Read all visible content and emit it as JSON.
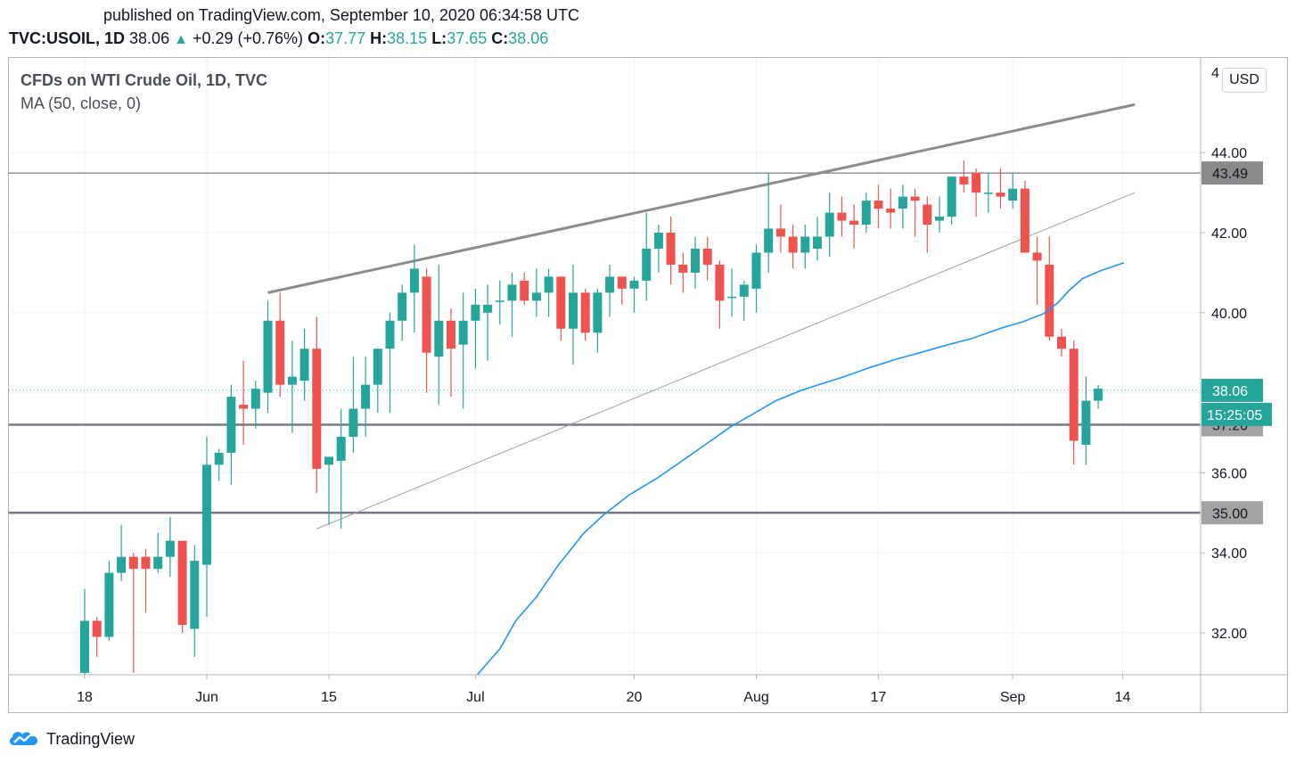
{
  "header": {
    "published": "published on TradingView.com, September 10, 2020 06:34:58 UTC",
    "symbol": "TVC:USOIL, 1D",
    "last": "38.06",
    "change": "+0.29 (+0.76%)",
    "open_label": "O:",
    "open": "37.77",
    "high_label": "H:",
    "high": "38.15",
    "low_label": "L:",
    "low": "37.65",
    "close_label": "C:",
    "close": "38.06"
  },
  "legend": {
    "title": "CFDs on WTI Crude Oil, 1D, TVC",
    "indicator": "MA (50, close, 0)"
  },
  "currency": "USD",
  "footer": {
    "brand": "TradingView",
    "icon": "tradingview-cloud-icon"
  },
  "colors": {
    "up": "#26a69a",
    "down": "#ef5350",
    "ma": "#2196f3",
    "level": "#787b86",
    "text": "#131722"
  },
  "chart_data": {
    "type": "candlestick",
    "title": "CFDs on WTI Crude Oil, 1D, TVC",
    "ylim": [
      30.9,
      46.2
    ],
    "y_ticks": [
      "32.00",
      "34.00",
      "36.00",
      "38.00",
      "40.00",
      "42.00",
      "44.00"
    ],
    "y_top_partial": "4",
    "x_labels": [
      {
        "label": "18",
        "at": 0
      },
      {
        "label": "Jun",
        "at": 10
      },
      {
        "label": "15",
        "at": 20
      },
      {
        "label": "Jul",
        "at": 32
      },
      {
        "label": "20",
        "at": 45
      },
      {
        "label": "Aug",
        "at": 55
      },
      {
        "label": "17",
        "at": 65
      },
      {
        "label": "Sep",
        "at": 76
      },
      {
        "label": "14",
        "at": 85
      }
    ],
    "candles": [
      [
        31.0,
        33.1,
        30.9,
        32.3
      ],
      [
        32.3,
        32.4,
        31.4,
        31.9
      ],
      [
        31.9,
        33.8,
        31.8,
        33.5
      ],
      [
        33.5,
        34.7,
        33.3,
        33.9
      ],
      [
        33.9,
        34.0,
        31.0,
        33.6
      ],
      [
        33.9,
        34.1,
        32.5,
        33.6
      ],
      [
        33.6,
        34.5,
        33.5,
        33.9
      ],
      [
        33.9,
        34.9,
        33.4,
        34.3
      ],
      [
        34.3,
        34.3,
        32.0,
        32.2
      ],
      [
        32.1,
        34.2,
        31.4,
        33.8
      ],
      [
        33.7,
        36.9,
        32.4,
        36.2
      ],
      [
        36.2,
        36.6,
        35.8,
        36.5
      ],
      [
        36.5,
        38.2,
        35.7,
        37.9
      ],
      [
        37.7,
        38.8,
        36.7,
        37.6
      ],
      [
        37.6,
        38.3,
        37.1,
        38.1
      ],
      [
        38.0,
        40.3,
        37.5,
        39.8
      ],
      [
        39.8,
        40.5,
        37.9,
        38.2
      ],
      [
        38.2,
        39.3,
        37.0,
        38.4
      ],
      [
        38.3,
        39.6,
        37.8,
        39.1
      ],
      [
        39.1,
        39.9,
        35.5,
        36.1
      ],
      [
        36.2,
        36.4,
        34.7,
        36.4
      ],
      [
        36.3,
        37.6,
        34.6,
        36.9
      ],
      [
        36.9,
        38.9,
        36.5,
        37.6
      ],
      [
        37.6,
        38.9,
        36.9,
        38.2
      ],
      [
        38.2,
        39.1,
        37.5,
        39.1
      ],
      [
        39.1,
        40.0,
        37.5,
        39.8
      ],
      [
        39.8,
        40.7,
        39.3,
        40.5
      ],
      [
        40.5,
        41.7,
        39.5,
        41.1
      ],
      [
        40.9,
        41.1,
        38.0,
        39.0
      ],
      [
        38.9,
        41.2,
        37.7,
        39.8
      ],
      [
        39.8,
        40.1,
        37.9,
        39.1
      ],
      [
        39.2,
        40.5,
        37.6,
        39.8
      ],
      [
        39.8,
        40.6,
        38.6,
        40.2
      ],
      [
        40.0,
        40.7,
        38.8,
        40.2
      ],
      [
        40.3,
        40.8,
        39.7,
        40.3
      ],
      [
        40.3,
        41.0,
        39.4,
        40.7
      ],
      [
        40.8,
        41.0,
        40.2,
        40.3
      ],
      [
        40.3,
        41.1,
        39.9,
        40.5
      ],
      [
        40.5,
        41.1,
        39.9,
        40.9
      ],
      [
        40.9,
        40.9,
        39.3,
        39.6
      ],
      [
        39.6,
        41.2,
        38.7,
        40.5
      ],
      [
        40.5,
        40.6,
        39.3,
        39.5
      ],
      [
        39.5,
        40.6,
        39.0,
        40.5
      ],
      [
        40.5,
        41.2,
        39.9,
        40.9
      ],
      [
        40.9,
        40.9,
        40.2,
        40.6
      ],
      [
        40.6,
        40.9,
        40.0,
        40.8
      ],
      [
        40.8,
        42.5,
        40.3,
        41.6
      ],
      [
        41.6,
        42.2,
        41.0,
        42.0
      ],
      [
        42.0,
        42.4,
        40.7,
        41.2
      ],
      [
        41.2,
        41.5,
        40.5,
        41.0
      ],
      [
        41.0,
        41.9,
        40.6,
        41.6
      ],
      [
        41.6,
        41.9,
        40.8,
        41.2
      ],
      [
        41.2,
        41.3,
        39.6,
        40.3
      ],
      [
        40.4,
        41.1,
        39.9,
        40.4
      ],
      [
        40.4,
        40.8,
        39.8,
        40.7
      ],
      [
        40.6,
        41.7,
        40.0,
        41.5
      ],
      [
        41.5,
        43.5,
        41.0,
        42.1
      ],
      [
        42.1,
        42.7,
        41.5,
        41.9
      ],
      [
        41.9,
        42.2,
        41.1,
        41.5
      ],
      [
        41.5,
        42.2,
        41.1,
        41.9
      ],
      [
        41.6,
        42.4,
        41.3,
        41.9
      ],
      [
        41.9,
        43.0,
        41.4,
        42.5
      ],
      [
        42.5,
        42.9,
        41.9,
        42.3
      ],
      [
        42.3,
        42.7,
        41.6,
        42.2
      ],
      [
        42.2,
        43.0,
        42.0,
        42.8
      ],
      [
        42.8,
        43.2,
        42.1,
        42.6
      ],
      [
        42.6,
        43.1,
        42.1,
        42.5
      ],
      [
        42.6,
        43.2,
        42.1,
        42.9
      ],
      [
        42.9,
        43.1,
        41.9,
        42.8
      ],
      [
        42.7,
        42.9,
        41.5,
        42.2
      ],
      [
        42.3,
        42.9,
        42.0,
        42.4
      ],
      [
        42.4,
        43.4,
        42.2,
        43.4
      ],
      [
        43.4,
        43.8,
        43.0,
        43.2
      ],
      [
        43.5,
        43.6,
        42.4,
        43.0
      ],
      [
        43.0,
        43.5,
        42.5,
        43.0
      ],
      [
        43.0,
        43.6,
        42.6,
        42.9
      ],
      [
        42.8,
        43.5,
        42.6,
        43.1
      ],
      [
        43.1,
        43.3,
        41.5,
        41.5
      ],
      [
        41.5,
        41.9,
        40.2,
        41.3
      ],
      [
        41.2,
        41.9,
        39.3,
        39.4
      ],
      [
        39.4,
        39.6,
        38.9,
        39.1
      ],
      [
        39.1,
        39.3,
        36.2,
        36.8
      ],
      [
        36.7,
        38.4,
        36.2,
        37.8
      ],
      [
        37.8,
        38.2,
        37.6,
        38.1
      ]
    ],
    "ma_50": [
      [
        32.0,
        30.9
      ],
      [
        34.0,
        31.6
      ],
      [
        35.3,
        32.3
      ],
      [
        37.0,
        32.9
      ],
      [
        38.8,
        33.7
      ],
      [
        40.9,
        34.5
      ],
      [
        42.5,
        34.95
      ],
      [
        44.6,
        35.45
      ],
      [
        46.8,
        35.85
      ],
      [
        48.7,
        36.25
      ],
      [
        50.8,
        36.7
      ],
      [
        52.9,
        37.15
      ],
      [
        54.9,
        37.5
      ],
      [
        56.6,
        37.8
      ],
      [
        58.6,
        38.05
      ],
      [
        60.3,
        38.22
      ],
      [
        62.2,
        38.4
      ],
      [
        64.2,
        38.62
      ],
      [
        66.6,
        38.85
      ],
      [
        68.4,
        39.0
      ],
      [
        70.7,
        39.2
      ],
      [
        72.6,
        39.35
      ],
      [
        75.1,
        39.62
      ],
      [
        76.8,
        39.77
      ],
      [
        78.5,
        39.97
      ],
      [
        79.7,
        40.25
      ],
      [
        80.6,
        40.55
      ],
      [
        81.7,
        40.85
      ],
      [
        83.2,
        41.05
      ],
      [
        85.1,
        41.25
      ]
    ],
    "trendlines": [
      {
        "kind": "resistance",
        "from": [
          15,
          40.5
        ],
        "to": [
          86,
          45.2
        ]
      },
      {
        "kind": "support",
        "from": [
          19,
          34.6
        ],
        "to": [
          86,
          43.0
        ]
      }
    ],
    "levels": [
      "43.49",
      "37.20",
      "35.00"
    ],
    "last_price": "38.06",
    "countdown": "15:25:05"
  }
}
